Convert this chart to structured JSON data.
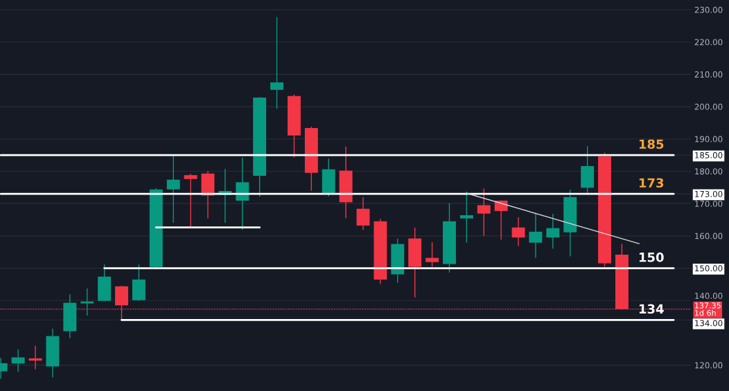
{
  "chart_data": {
    "type": "candlestick",
    "categories": [
      null,
      null,
      null,
      null,
      null,
      null,
      null,
      null,
      null,
      null,
      null,
      null,
      null,
      null,
      null,
      null,
      null,
      null,
      null,
      null,
      null,
      null,
      null,
      null,
      null,
      null,
      null,
      null,
      null,
      null,
      null,
      null,
      null,
      null,
      null,
      null,
      null,
      null,
      null,
      null
    ],
    "ohlc": [
      [
        118.1,
        122.1,
        115.9,
        120.6
      ],
      [
        120.5,
        124.7,
        118.1,
        122.4
      ],
      [
        122.1,
        125.9,
        118.9,
        121.4
      ],
      [
        119.6,
        131.1,
        116.4,
        129.0
      ],
      [
        130.5,
        141.8,
        128.5,
        139.3
      ],
      [
        139.1,
        143.6,
        135.5,
        139.7
      ],
      [
        139.9,
        151.0,
        139.9,
        147.4
      ],
      [
        144.4,
        144.4,
        133.9,
        138.5
      ],
      [
        140.1,
        151.0,
        140.1,
        146.5
      ],
      [
        150.4,
        174.6,
        150.0,
        174.4
      ],
      [
        174.4,
        185.1,
        164.2,
        177.4
      ],
      [
        178.8,
        179.1,
        162.5,
        177.6
      ],
      [
        179.3,
        180.0,
        165.6,
        172.5
      ],
      [
        172.7,
        180.6,
        164.2,
        173.9
      ],
      [
        170.9,
        184.1,
        162.0,
        176.6
      ],
      [
        178.6,
        202.8,
        172.3,
        202.8
      ],
      [
        205.2,
        227.6,
        199.5,
        207.5
      ],
      [
        203.3,
        203.6,
        184.4,
        191.1
      ],
      [
        193.4,
        193.6,
        174.1,
        179.5
      ],
      [
        172.9,
        183.8,
        172.4,
        180.6
      ],
      [
        180.2,
        187.5,
        165.6,
        170.4
      ],
      [
        168.4,
        171.8,
        162.0,
        163.2
      ],
      [
        164.5,
        165.1,
        145.3,
        146.5
      ],
      [
        148.1,
        159.0,
        145.6,
        157.5
      ],
      [
        159.2,
        162.4,
        141.1,
        150.4
      ],
      [
        153.2,
        157.9,
        150.6,
        151.9
      ],
      [
        151.3,
        170.0,
        148.8,
        164.5
      ],
      [
        165.4,
        173.6,
        158.1,
        166.4
      ],
      [
        169.5,
        174.5,
        160.2,
        166.9
      ],
      [
        170.9,
        170.9,
        159.0,
        167.7
      ],
      [
        162.6,
        165.6,
        157.0,
        159.5
      ],
      [
        157.9,
        167.0,
        153.3,
        161.3
      ],
      [
        159.5,
        166.7,
        156.2,
        162.4
      ],
      [
        161.1,
        174.1,
        153.8,
        172.0
      ],
      [
        174.9,
        187.6,
        173.3,
        181.6
      ],
      [
        184.6,
        185.6,
        150.6,
        151.5
      ],
      [
        154.2,
        157.4,
        137.35,
        137.35
      ],
      null,
      null,
      null
    ],
    "colors": [
      "#089981",
      "#089981",
      "#f23645",
      "#089981",
      "#089981",
      "#089981",
      "#089981",
      "#f23645",
      "#089981",
      "#089981",
      "#089981",
      "#f23645",
      "#f23645",
      "#089981",
      "#089981",
      "#089981",
      "#089981",
      "#f23645",
      "#f23645",
      "#089981",
      "#f23645",
      "#f23645",
      "#f23645",
      "#089981",
      "#f23645",
      "#f23645",
      "#089981",
      "#089981",
      "#f23645",
      "#f23645",
      "#f23645",
      "#089981",
      "#089981",
      "#089981",
      "#089981",
      "#f23645",
      "#f23645",
      null,
      null,
      null
    ],
    "series": [
      {
        "type": "line",
        "name": "185",
        "color": "#ffffff",
        "values": [
          185,
          185,
          185,
          185,
          185,
          185,
          185,
          185,
          185,
          185,
          185,
          185,
          185,
          185,
          185,
          185,
          185,
          185,
          185,
          185,
          185,
          185,
          185,
          185,
          185,
          185,
          185,
          185,
          185,
          185,
          185,
          185,
          185,
          185,
          185,
          185,
          185,
          185,
          185,
          185
        ]
      },
      {
        "type": "line",
        "name": "173",
        "color": "#ffffff",
        "values": [
          173,
          173,
          173,
          173,
          173,
          173,
          173,
          173,
          173,
          173,
          173,
          173,
          173,
          173,
          173,
          173,
          173,
          173,
          173,
          173,
          173,
          173,
          173,
          173,
          173,
          173,
          173,
          173,
          173,
          173,
          173,
          173,
          173,
          173,
          173,
          173,
          173,
          173,
          173,
          173
        ]
      },
      {
        "type": "line",
        "name": "150",
        "color": "#ffffff",
        "values": [
          null,
          null,
          null,
          null,
          null,
          null,
          150,
          150,
          150,
          150,
          150,
          150,
          150,
          150,
          150,
          150,
          150,
          150,
          150,
          150,
          150,
          150,
          150,
          150,
          150,
          150,
          150,
          150,
          150,
          150,
          150,
          150,
          150,
          150,
          150,
          150,
          150,
          150,
          150,
          150
        ]
      },
      {
        "type": "line",
        "name": "134",
        "color": "#ffffff",
        "values": [
          null,
          null,
          null,
          null,
          null,
          null,
          null,
          134,
          134,
          134,
          134,
          134,
          134,
          134,
          134,
          134,
          134,
          134,
          134,
          134,
          134,
          134,
          134,
          134,
          134,
          134,
          134,
          134,
          134,
          134,
          134,
          134,
          134,
          134,
          134,
          134,
          134,
          134,
          134,
          134
        ]
      },
      {
        "type": "line",
        "color": "#ffffff",
        "values": [
          null,
          null,
          null,
          null,
          null,
          null,
          null,
          null,
          null,
          162.6,
          162.6,
          162.6,
          162.6,
          162.6,
          162.6,
          162.6,
          null,
          null,
          null,
          null,
          null,
          null,
          null,
          null,
          null,
          null,
          null,
          null,
          null,
          null,
          null,
          null,
          null,
          null,
          null,
          null,
          null,
          null,
          null,
          null
        ]
      },
      {
        "type": "line",
        "color": "#d1d4dc",
        "values": [
          null,
          null,
          null,
          null,
          null,
          null,
          null,
          null,
          null,
          null,
          null,
          null,
          null,
          null,
          null,
          null,
          null,
          null,
          null,
          null,
          null,
          null,
          null,
          null,
          null,
          null,
          null,
          173.2,
          null,
          null,
          null,
          null,
          null,
          null,
          null,
          null,
          null,
          157.6,
          null,
          null
        ]
      }
    ],
    "ref_lines": [
      {
        "axis": "y",
        "value": 137.35,
        "color": "#f23645",
        "line_style": "dotted"
      }
    ],
    "ylim": [
      112,
      233
    ],
    "yticks": [
      {
        "value": 120,
        "label": "120.00"
      },
      {
        "value": 140,
        "label": "140.00"
      },
      {
        "value": 160,
        "label": "160.00"
      },
      {
        "value": 170,
        "label": "170.00"
      },
      {
        "value": 180,
        "label": "180.00"
      },
      {
        "value": 190,
        "label": "190.00"
      },
      {
        "value": 200,
        "label": "200.00"
      },
      {
        "value": 210,
        "label": "210.00"
      },
      {
        "value": 220,
        "label": "220.00"
      },
      {
        "value": 230,
        "label": "230.00"
      },
      {
        "value": 185,
        "label": "185.00"
      },
      {
        "value": 173,
        "label": "173.00"
      },
      {
        "value": 150,
        "label": "150.00"
      },
      {
        "value": 134,
        "label": "134.00"
      },
      {
        "value": 137.35,
        "label": "137.35\n1d 6h"
      }
    ],
    "grid": "y",
    "tick_labels": "y"
  }
}
